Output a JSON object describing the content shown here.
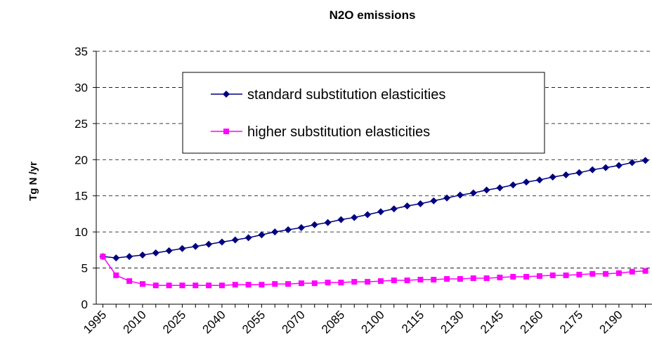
{
  "chart_data": {
    "type": "line",
    "title": "N2O emissions",
    "y_label": "Tg N /yr",
    "x": [
      1995,
      2000,
      2005,
      2010,
      2015,
      2020,
      2025,
      2030,
      2035,
      2040,
      2045,
      2050,
      2055,
      2060,
      2065,
      2070,
      2075,
      2080,
      2085,
      2090,
      2095,
      2100,
      2105,
      2110,
      2115,
      2120,
      2125,
      2130,
      2135,
      2140,
      2145,
      2150,
      2155,
      2160,
      2165,
      2170,
      2175,
      2180,
      2185,
      2190,
      2195,
      2200
    ],
    "series": [
      {
        "name": "standard substitution elasticities",
        "color": "#000080",
        "marker": "diamond",
        "values": [
          6.6,
          6.4,
          6.6,
          6.8,
          7.1,
          7.4,
          7.7,
          8.0,
          8.3,
          8.6,
          8.9,
          9.2,
          9.6,
          10.0,
          10.3,
          10.6,
          11.0,
          11.3,
          11.7,
          12.0,
          12.4,
          12.8,
          13.2,
          13.6,
          13.9,
          14.3,
          14.7,
          15.1,
          15.4,
          15.8,
          16.1,
          16.5,
          16.9,
          17.2,
          17.6,
          17.9,
          18.2,
          18.6,
          18.9,
          19.2,
          19.6,
          19.9
        ]
      },
      {
        "name": "higher substitution elasticities",
        "color": "#ff00ff",
        "marker": "square",
        "values": [
          6.6,
          4.0,
          3.2,
          2.8,
          2.6,
          2.6,
          2.6,
          2.6,
          2.6,
          2.6,
          2.7,
          2.7,
          2.7,
          2.8,
          2.8,
          2.9,
          2.9,
          3.0,
          3.0,
          3.1,
          3.1,
          3.2,
          3.3,
          3.3,
          3.4,
          3.4,
          3.5,
          3.5,
          3.6,
          3.6,
          3.7,
          3.8,
          3.8,
          3.9,
          4.0,
          4.0,
          4.1,
          4.2,
          4.2,
          4.3,
          4.5,
          4.6
        ]
      }
    ],
    "xlim": [
      1992.5,
      2202.5
    ],
    "xticks": [
      1995,
      2010,
      2025,
      2040,
      2055,
      2070,
      2085,
      2100,
      2115,
      2130,
      2145,
      2160,
      2175,
      2190
    ],
    "ylim": [
      0,
      35
    ],
    "yticks": [
      0,
      5,
      10,
      15,
      20,
      25,
      30,
      35
    ],
    "grid": true
  }
}
